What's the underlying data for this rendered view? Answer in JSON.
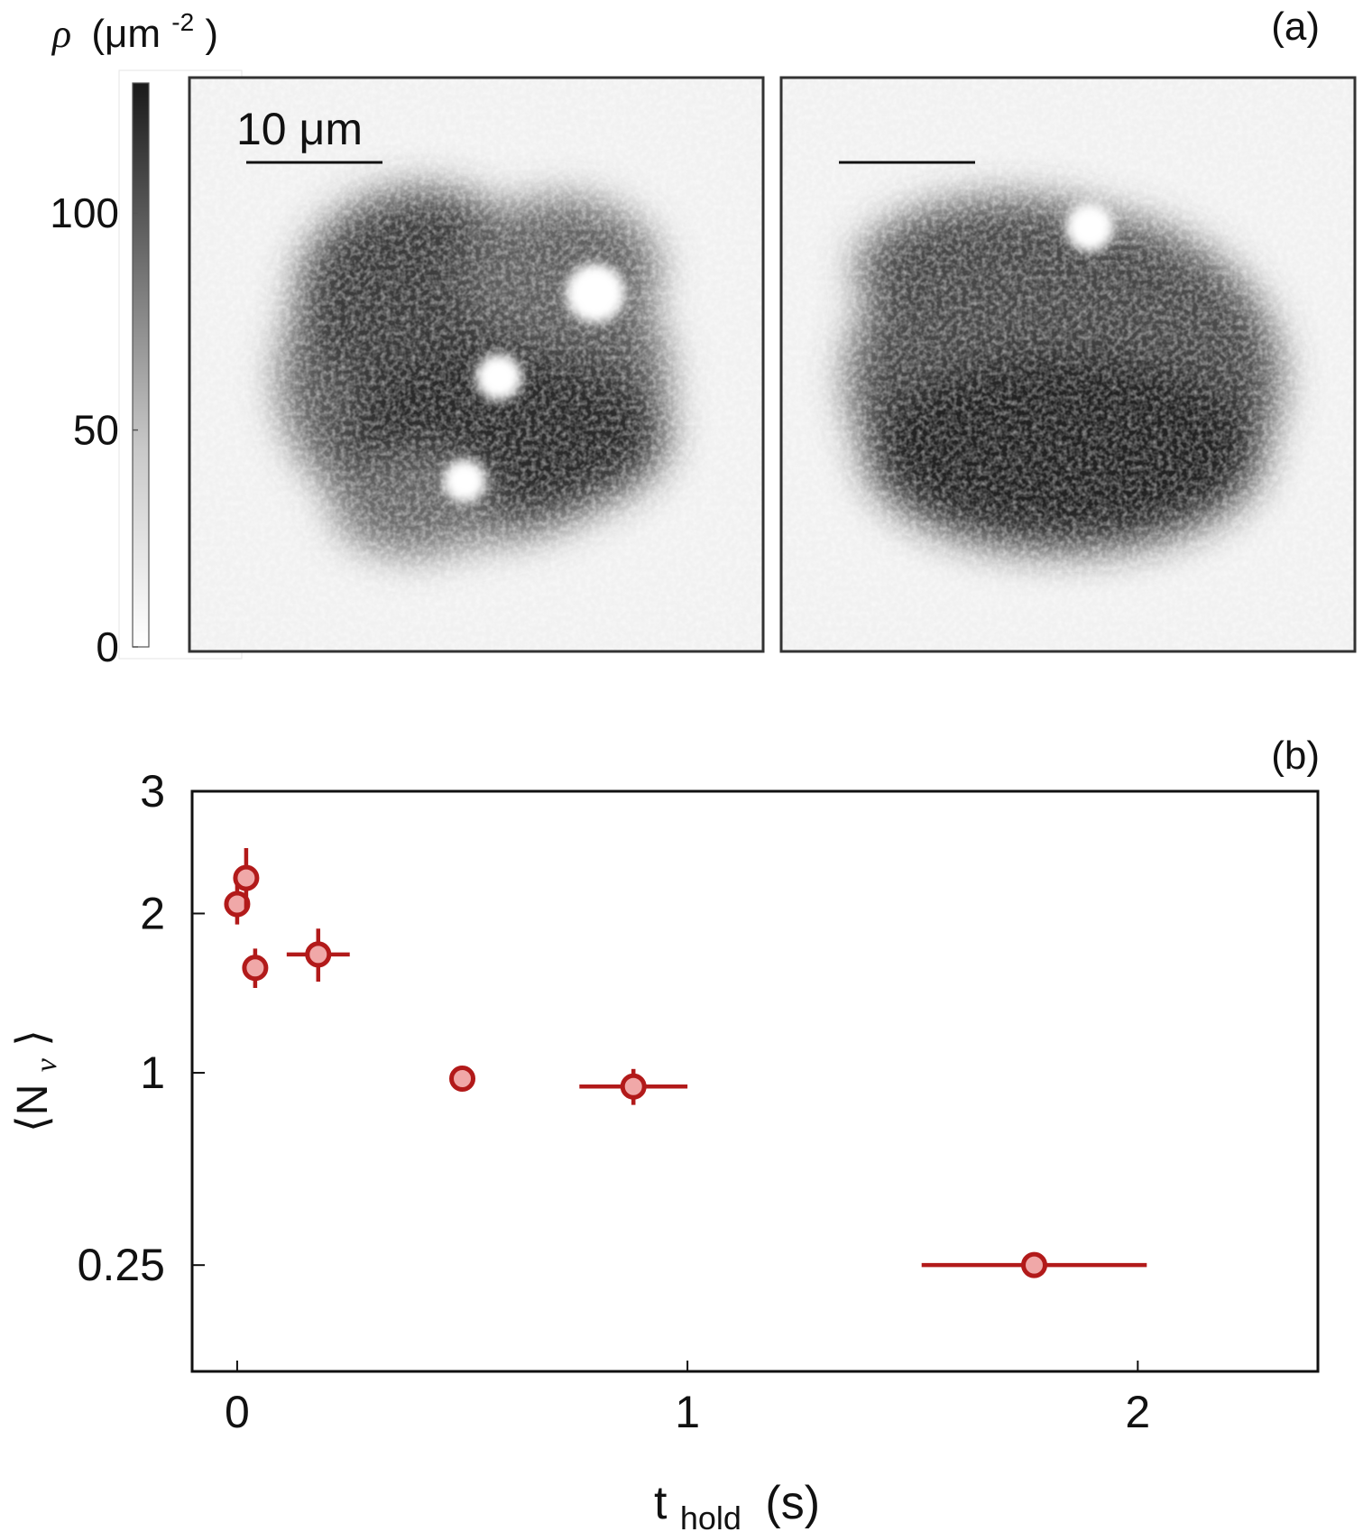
{
  "figure": {
    "panel_a_label": "(a)",
    "panel_b_label": "(b)"
  },
  "panel_a": {
    "colorbar_label_symbol": "ρ",
    "colorbar_label_unit_base": "(μm",
    "colorbar_label_unit_exp": "-2",
    "colorbar_label_unit_close": ")",
    "colorbar_ticks": [
      "0",
      "50",
      "100"
    ],
    "colorbar_values": [
      0,
      50,
      100
    ],
    "colorbar_max": 130,
    "scale_bar_label": "10 μm",
    "colormap": [
      "#ffffff",
      "#1a1a1a"
    ],
    "images": [
      {
        "vortex_count": 3
      },
      {
        "vortex_count": 1
      }
    ]
  },
  "chart_data": {
    "type": "scatter",
    "title": "",
    "xlabel_base": "t",
    "xlabel_sub": "hold",
    "xlabel_unit": "(s)",
    "ylabel": "⟨N",
    "ylabel_sub": "v",
    "ylabel_close": "⟩",
    "x_ticks": [
      "0",
      "1",
      "2"
    ],
    "x_tick_values": [
      0,
      1,
      2
    ],
    "y_ticks": [
      "0.25",
      "1",
      "2",
      "3"
    ],
    "y_tick_values": [
      0.25,
      1,
      2,
      3
    ],
    "y_scale": "sqrt",
    "xlim": [
      -0.1,
      2.4
    ],
    "ylim": [
      0.05,
      3.0
    ],
    "marker_face": "#f0a8a8",
    "marker_edge": "#b21a1a",
    "series": [
      {
        "points": [
          {
            "x": 0.0,
            "y": 2.07,
            "xerr": 0.0,
            "yerr": 0.15
          },
          {
            "x": 0.02,
            "y": 2.27,
            "xerr": 0.0,
            "yerr": 0.24
          },
          {
            "x": 0.04,
            "y": 1.62,
            "xerr": 0.0,
            "yerr": 0.13
          },
          {
            "x": 0.18,
            "y": 1.71,
            "xerr": 0.07,
            "yerr": 0.18
          },
          {
            "x": 0.5,
            "y": 0.97,
            "xerr": 0.0,
            "yerr": 0.0
          },
          {
            "x": 0.88,
            "y": 0.93,
            "xerr": 0.12,
            "yerr": 0.09
          },
          {
            "x": 1.77,
            "y": 0.25,
            "xerr": 0.25,
            "yerr": 0.02
          }
        ]
      }
    ]
  }
}
